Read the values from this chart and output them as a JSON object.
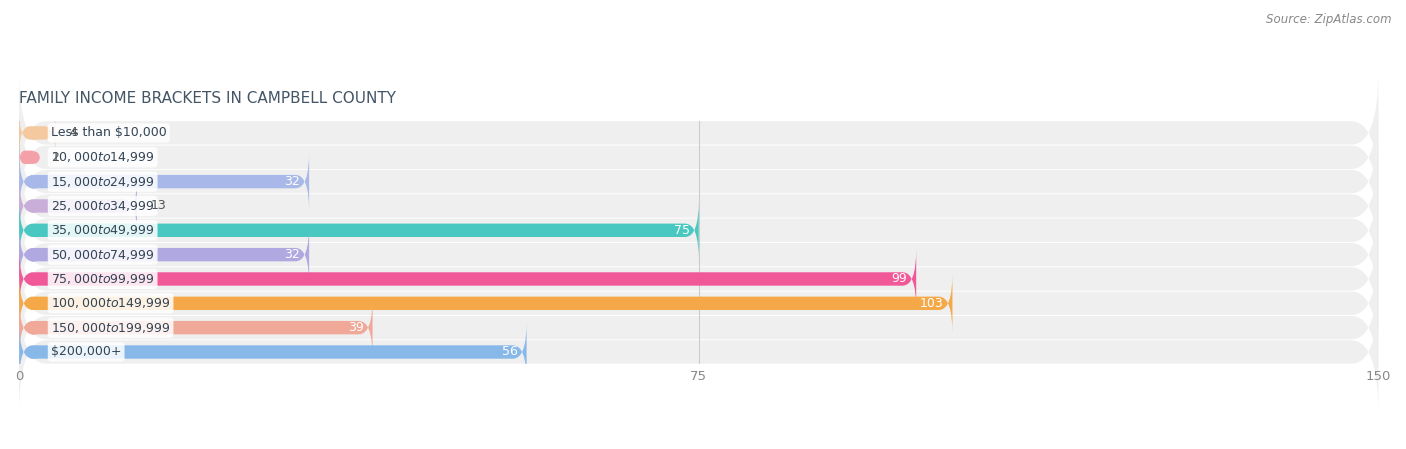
{
  "title": "FAMILY INCOME BRACKETS IN CAMPBELL COUNTY",
  "source": "Source: ZipAtlas.com",
  "categories": [
    "Less than $10,000",
    "$10,000 to $14,999",
    "$15,000 to $24,999",
    "$25,000 to $34,999",
    "$35,000 to $49,999",
    "$50,000 to $74,999",
    "$75,000 to $99,999",
    "$100,000 to $149,999",
    "$150,000 to $199,999",
    "$200,000+"
  ],
  "values": [
    4,
    2,
    32,
    13,
    75,
    32,
    99,
    103,
    39,
    56
  ],
  "colors": [
    "#f5c9a0",
    "#f4a0a8",
    "#a8b8e8",
    "#c8aed8",
    "#48c8c0",
    "#b0a8e0",
    "#f05898",
    "#f5a848",
    "#f0a898",
    "#88b8e8"
  ],
  "xlim": [
    0,
    150
  ],
  "xticks": [
    0,
    75,
    150
  ],
  "bar_height": 0.55,
  "label_fontsize": 9.0,
  "value_fontsize": 9.0,
  "title_fontsize": 11,
  "title_color": "#445566",
  "background_color": "#ffffff",
  "row_bg_color": "#f0f0f4",
  "row_alt_color": "#e8e8ee"
}
